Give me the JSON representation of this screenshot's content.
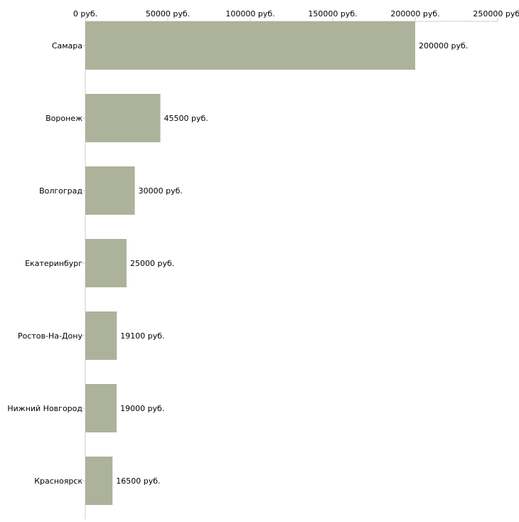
{
  "chart_data": {
    "type": "bar",
    "orientation": "horizontal",
    "categories": [
      "Самара",
      "Воронеж",
      "Волгоград",
      "Екатеринбург",
      "Ростов-На-Дону",
      "Нижний Новгород",
      "Красноярск"
    ],
    "values": [
      200000,
      45500,
      30000,
      25000,
      19100,
      19000,
      16500
    ],
    "data_labels": [
      "200000 руб.",
      "45500 руб.",
      "30000 руб.",
      "25000 руб.",
      "19100 руб.",
      "19000 руб.",
      "16500 руб."
    ],
    "xlim": [
      0,
      250000
    ],
    "x_ticks": [
      0,
      50000,
      100000,
      150000,
      200000,
      250000
    ],
    "x_tick_labels": [
      "0 руб.",
      "50000 руб.",
      "100000 руб.",
      "150000 руб.",
      "200000 руб.",
      "250000 руб."
    ],
    "x_axis_position": "top",
    "title": "",
    "xlabel": "",
    "ylabel": "",
    "grid": false,
    "legend": "none",
    "bar_color": "#adb29a",
    "axis_color": "#cccccc",
    "text_color": "#000000"
  }
}
